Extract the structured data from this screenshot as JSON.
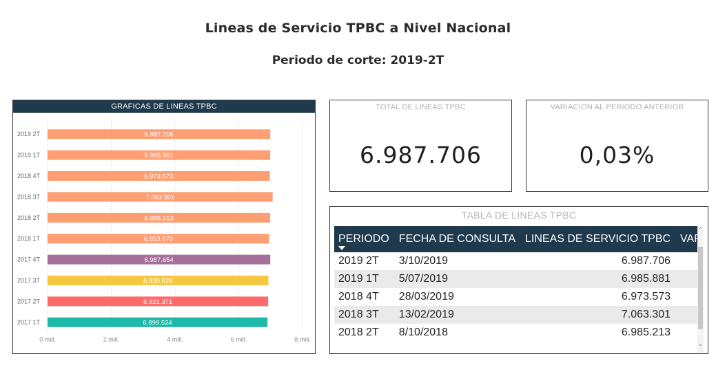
{
  "report": {
    "title": "Lineas de Servicio TPBC a Nivel Nacional",
    "subtitle": "Periodo de corte: 2019-2T"
  },
  "chart_panel": {
    "header": "GRAFICAS DE LINEAS TPBC"
  },
  "chart_data": {
    "type": "bar",
    "orientation": "horizontal",
    "categories": [
      "2019 2T",
      "2019 1T",
      "2018 4T",
      "2018 3T",
      "2018 2T",
      "2018 1T",
      "2017 4T",
      "2017 3T",
      "2017 2T",
      "2017 1T"
    ],
    "values": [
      6987706,
      6985881,
      6973573,
      7063301,
      6985213,
      6953670,
      6987654,
      6930628,
      6921371,
      6899524
    ],
    "value_labels": [
      "6.987.706",
      "6.985.881",
      "6.973.573",
      "7.063.301",
      "6.985.213",
      "6.953.670",
      "6.987.654",
      "6.930.628",
      "6.921.371",
      "6.899.524"
    ],
    "colors": [
      "#fd9e73",
      "#fd9e73",
      "#fd9e73",
      "#fd9e73",
      "#fd9e73",
      "#fd9e73",
      "#a66f99",
      "#f5c842",
      "#fd6b6b",
      "#1db9a8"
    ],
    "xlim": [
      0,
      8000000
    ],
    "xticks": [
      0,
      2000000,
      4000000,
      6000000,
      8000000
    ],
    "xtick_labels": [
      "0 mill.",
      "2 mill.",
      "4 mill.",
      "6 mill.",
      "8 mill."
    ],
    "grid": true
  },
  "kpi_total": {
    "label": "TOTAL DE LINEAS TPBC",
    "value": "6.987.706"
  },
  "kpi_variation": {
    "label": "VARIACION AL PERIODO ANTERIOR",
    "value": "0,03%"
  },
  "table": {
    "title": "TABLA DE LINEAS TPBC",
    "columns": [
      "PERIODO",
      "FECHA DE CONSULTA",
      "LINEAS DE SERVICIO TPBC",
      "VARIA"
    ],
    "rows": [
      [
        "2019 2T",
        "3/10/2019",
        "6.987.706",
        "("
      ],
      [
        "2019 1T",
        "5/07/2019",
        "6.985.881",
        "("
      ],
      [
        "2018 4T",
        "28/03/2019",
        "6.973.573",
        "-"
      ],
      [
        "2018 3T",
        "13/02/2019",
        "7.063.301",
        "-"
      ],
      [
        "2018 2T",
        "8/10/2018",
        "6.985.213",
        "("
      ]
    ]
  },
  "icons": {
    "sort": "sort-descending-icon",
    "scroll_up": "chevron-up-icon",
    "scroll_down": "chevron-down-icon"
  }
}
